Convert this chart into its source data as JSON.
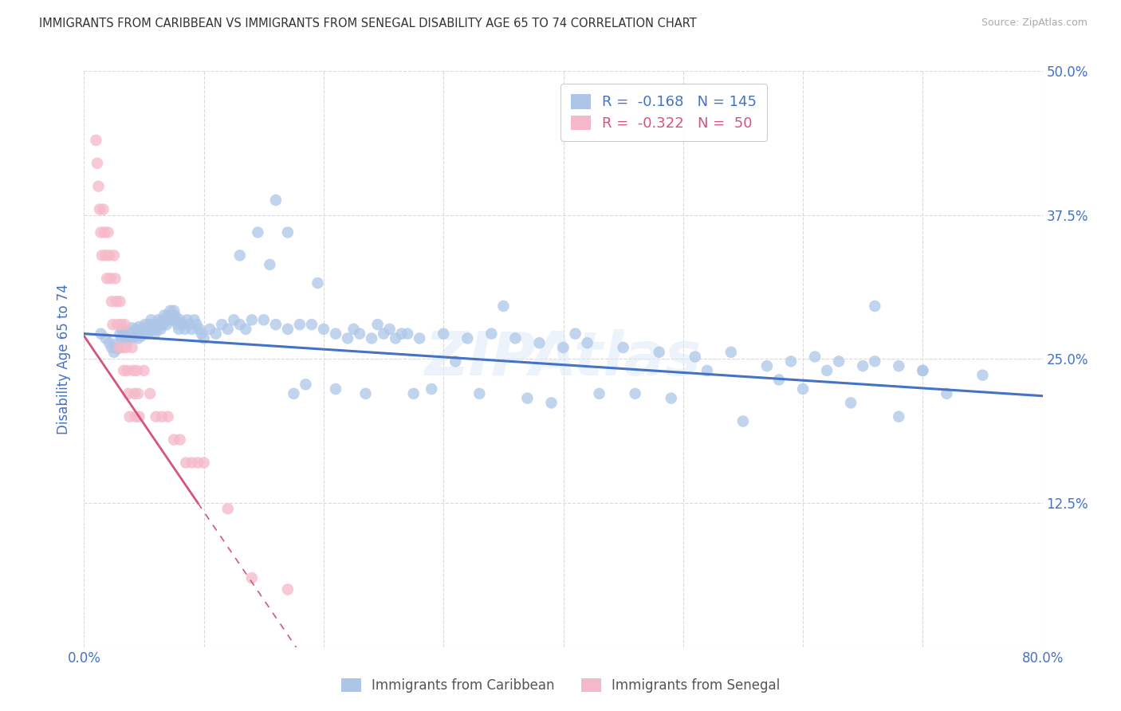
{
  "title": "IMMIGRANTS FROM CARIBBEAN VS IMMIGRANTS FROM SENEGAL DISABILITY AGE 65 TO 74 CORRELATION CHART",
  "source": "Source: ZipAtlas.com",
  "ylabel": "Disability Age 65 to 74",
  "xlim": [
    0.0,
    0.8
  ],
  "ylim": [
    0.0,
    0.5
  ],
  "xticks": [
    0.0,
    0.1,
    0.2,
    0.3,
    0.4,
    0.5,
    0.6,
    0.7,
    0.8
  ],
  "yticks": [
    0.0,
    0.125,
    0.25,
    0.375,
    0.5
  ],
  "watermark": "ZIPAtlas",
  "caribbean_color": "#adc6e8",
  "senegal_color": "#f5b8c8",
  "trend_caribbean_color": "#4472c4",
  "trend_senegal_color": "#d4547a",
  "background_color": "#ffffff",
  "grid_color": "#d9d9d9",
  "axis_label_color": "#4472c4",
  "caribbean_x": [
    0.014,
    0.018,
    0.021,
    0.023,
    0.025,
    0.026,
    0.028,
    0.03,
    0.031,
    0.032,
    0.033,
    0.034,
    0.035,
    0.036,
    0.037,
    0.038,
    0.039,
    0.04,
    0.041,
    0.042,
    0.043,
    0.044,
    0.045,
    0.046,
    0.047,
    0.048,
    0.049,
    0.05,
    0.051,
    0.052,
    0.053,
    0.054,
    0.055,
    0.056,
    0.057,
    0.058,
    0.059,
    0.06,
    0.061,
    0.062,
    0.063,
    0.064,
    0.065,
    0.066,
    0.067,
    0.068,
    0.069,
    0.07,
    0.071,
    0.072,
    0.073,
    0.074,
    0.075,
    0.076,
    0.077,
    0.078,
    0.079,
    0.08,
    0.082,
    0.084,
    0.086,
    0.088,
    0.09,
    0.092,
    0.094,
    0.096,
    0.098,
    0.1,
    0.105,
    0.11,
    0.115,
    0.12,
    0.125,
    0.13,
    0.135,
    0.14,
    0.15,
    0.16,
    0.17,
    0.18,
    0.19,
    0.2,
    0.21,
    0.22,
    0.23,
    0.24,
    0.25,
    0.26,
    0.27,
    0.28,
    0.3,
    0.32,
    0.34,
    0.36,
    0.38,
    0.4,
    0.42,
    0.45,
    0.48,
    0.51,
    0.54,
    0.57,
    0.59,
    0.61,
    0.63,
    0.65,
    0.66,
    0.68,
    0.7,
    0.72,
    0.16,
    0.17,
    0.13,
    0.145,
    0.155,
    0.175,
    0.185,
    0.195,
    0.21,
    0.225,
    0.235,
    0.245,
    0.255,
    0.265,
    0.275,
    0.29,
    0.31,
    0.33,
    0.35,
    0.37,
    0.39,
    0.41,
    0.43,
    0.46,
    0.49,
    0.52,
    0.55,
    0.58,
    0.6,
    0.62,
    0.64,
    0.66,
    0.68,
    0.7,
    0.75
  ],
  "caribbean_y": [
    0.272,
    0.268,
    0.264,
    0.26,
    0.256,
    0.263,
    0.259,
    0.272,
    0.268,
    0.275,
    0.271,
    0.267,
    0.274,
    0.27,
    0.266,
    0.273,
    0.269,
    0.277,
    0.273,
    0.269,
    0.276,
    0.272,
    0.268,
    0.278,
    0.274,
    0.27,
    0.276,
    0.272,
    0.28,
    0.276,
    0.272,
    0.28,
    0.276,
    0.284,
    0.28,
    0.276,
    0.272,
    0.28,
    0.276,
    0.284,
    0.28,
    0.276,
    0.284,
    0.28,
    0.288,
    0.284,
    0.28,
    0.288,
    0.284,
    0.292,
    0.288,
    0.284,
    0.292,
    0.288,
    0.284,
    0.28,
    0.276,
    0.284,
    0.28,
    0.276,
    0.284,
    0.28,
    0.276,
    0.284,
    0.28,
    0.276,
    0.272,
    0.268,
    0.276,
    0.272,
    0.28,
    0.276,
    0.284,
    0.28,
    0.276,
    0.284,
    0.284,
    0.28,
    0.276,
    0.28,
    0.28,
    0.276,
    0.272,
    0.268,
    0.272,
    0.268,
    0.272,
    0.268,
    0.272,
    0.268,
    0.272,
    0.268,
    0.272,
    0.268,
    0.264,
    0.26,
    0.264,
    0.26,
    0.256,
    0.252,
    0.256,
    0.244,
    0.248,
    0.252,
    0.248,
    0.244,
    0.248,
    0.244,
    0.24,
    0.22,
    0.388,
    0.36,
    0.34,
    0.36,
    0.332,
    0.22,
    0.228,
    0.316,
    0.224,
    0.276,
    0.22,
    0.28,
    0.276,
    0.272,
    0.22,
    0.224,
    0.248,
    0.22,
    0.296,
    0.216,
    0.212,
    0.272,
    0.22,
    0.22,
    0.216,
    0.24,
    0.196,
    0.232,
    0.224,
    0.24,
    0.212,
    0.296,
    0.2,
    0.24,
    0.236
  ],
  "senegal_x": [
    0.01,
    0.011,
    0.012,
    0.013,
    0.014,
    0.015,
    0.016,
    0.017,
    0.018,
    0.019,
    0.02,
    0.021,
    0.022,
    0.023,
    0.024,
    0.025,
    0.026,
    0.027,
    0.028,
    0.029,
    0.03,
    0.031,
    0.032,
    0.033,
    0.034,
    0.035,
    0.036,
    0.037,
    0.038,
    0.04,
    0.041,
    0.042,
    0.043,
    0.044,
    0.045,
    0.046,
    0.05,
    0.055,
    0.06,
    0.065,
    0.07,
    0.075,
    0.08,
    0.085,
    0.09,
    0.095,
    0.1,
    0.12,
    0.14,
    0.17
  ],
  "senegal_y": [
    0.44,
    0.42,
    0.4,
    0.38,
    0.36,
    0.34,
    0.38,
    0.36,
    0.34,
    0.32,
    0.36,
    0.34,
    0.32,
    0.3,
    0.28,
    0.34,
    0.32,
    0.3,
    0.28,
    0.26,
    0.3,
    0.28,
    0.26,
    0.24,
    0.28,
    0.26,
    0.24,
    0.22,
    0.2,
    0.26,
    0.24,
    0.22,
    0.2,
    0.24,
    0.22,
    0.2,
    0.24,
    0.22,
    0.2,
    0.2,
    0.2,
    0.18,
    0.18,
    0.16,
    0.16,
    0.16,
    0.16,
    0.12,
    0.06,
    0.05
  ]
}
